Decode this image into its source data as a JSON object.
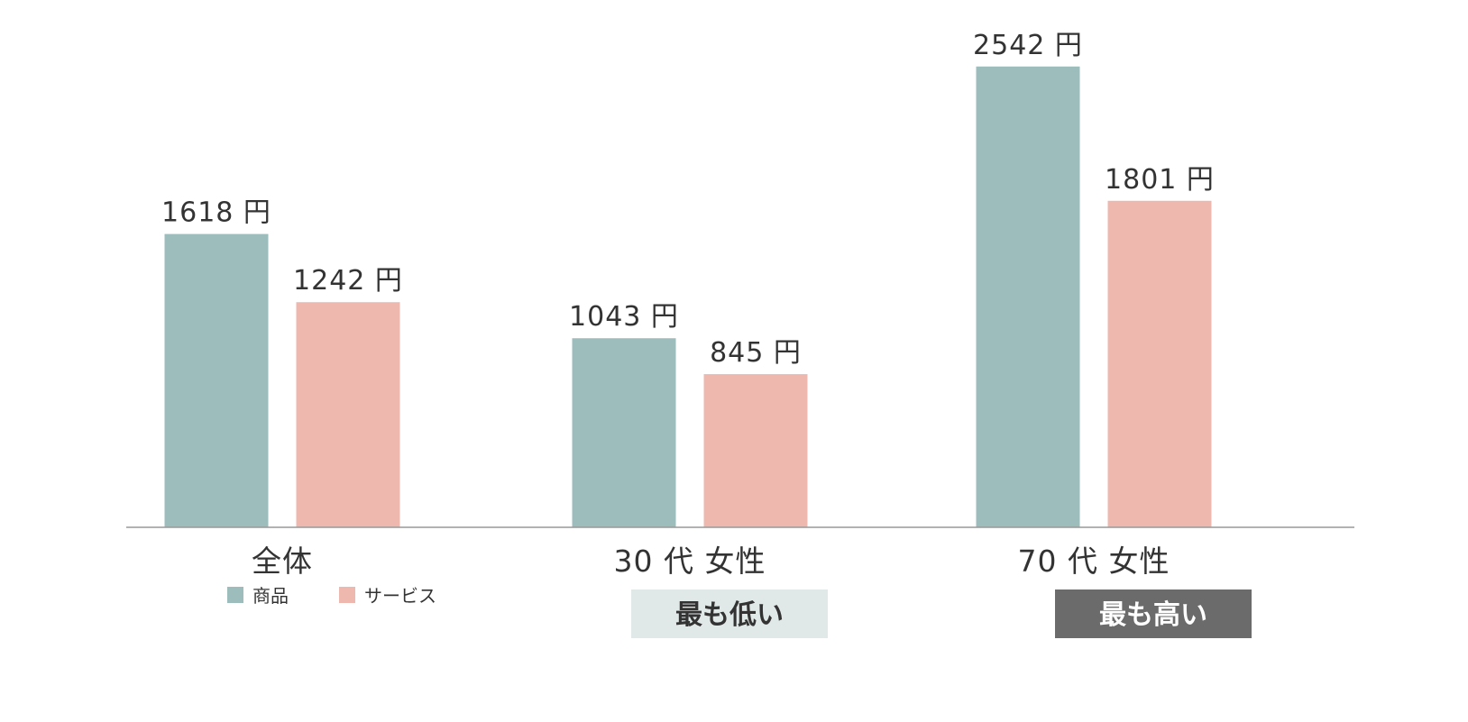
{
  "chart_data": {
    "type": "bar",
    "unit": "円",
    "categories": [
      "全体",
      "30 代 女性",
      "70 代 女性"
    ],
    "series": [
      {
        "name": "商品",
        "color": "#9dbdbd",
        "values": [
          1618,
          1043,
          2542
        ]
      },
      {
        "name": "サービス",
        "color": "#efb8af",
        "values": [
          1242,
          845,
          1801
        ]
      }
    ],
    "ylim": [
      0,
      2700
    ],
    "badges": [
      {
        "category_index": 1,
        "label": "最も低い",
        "bg": "#e0e8e8",
        "fg": "#333333"
      },
      {
        "category_index": 2,
        "label": "最も高い",
        "bg": "#6b6b6b",
        "fg": "#ffffff"
      }
    ],
    "legend_position": "bottom-left",
    "grid": false
  }
}
